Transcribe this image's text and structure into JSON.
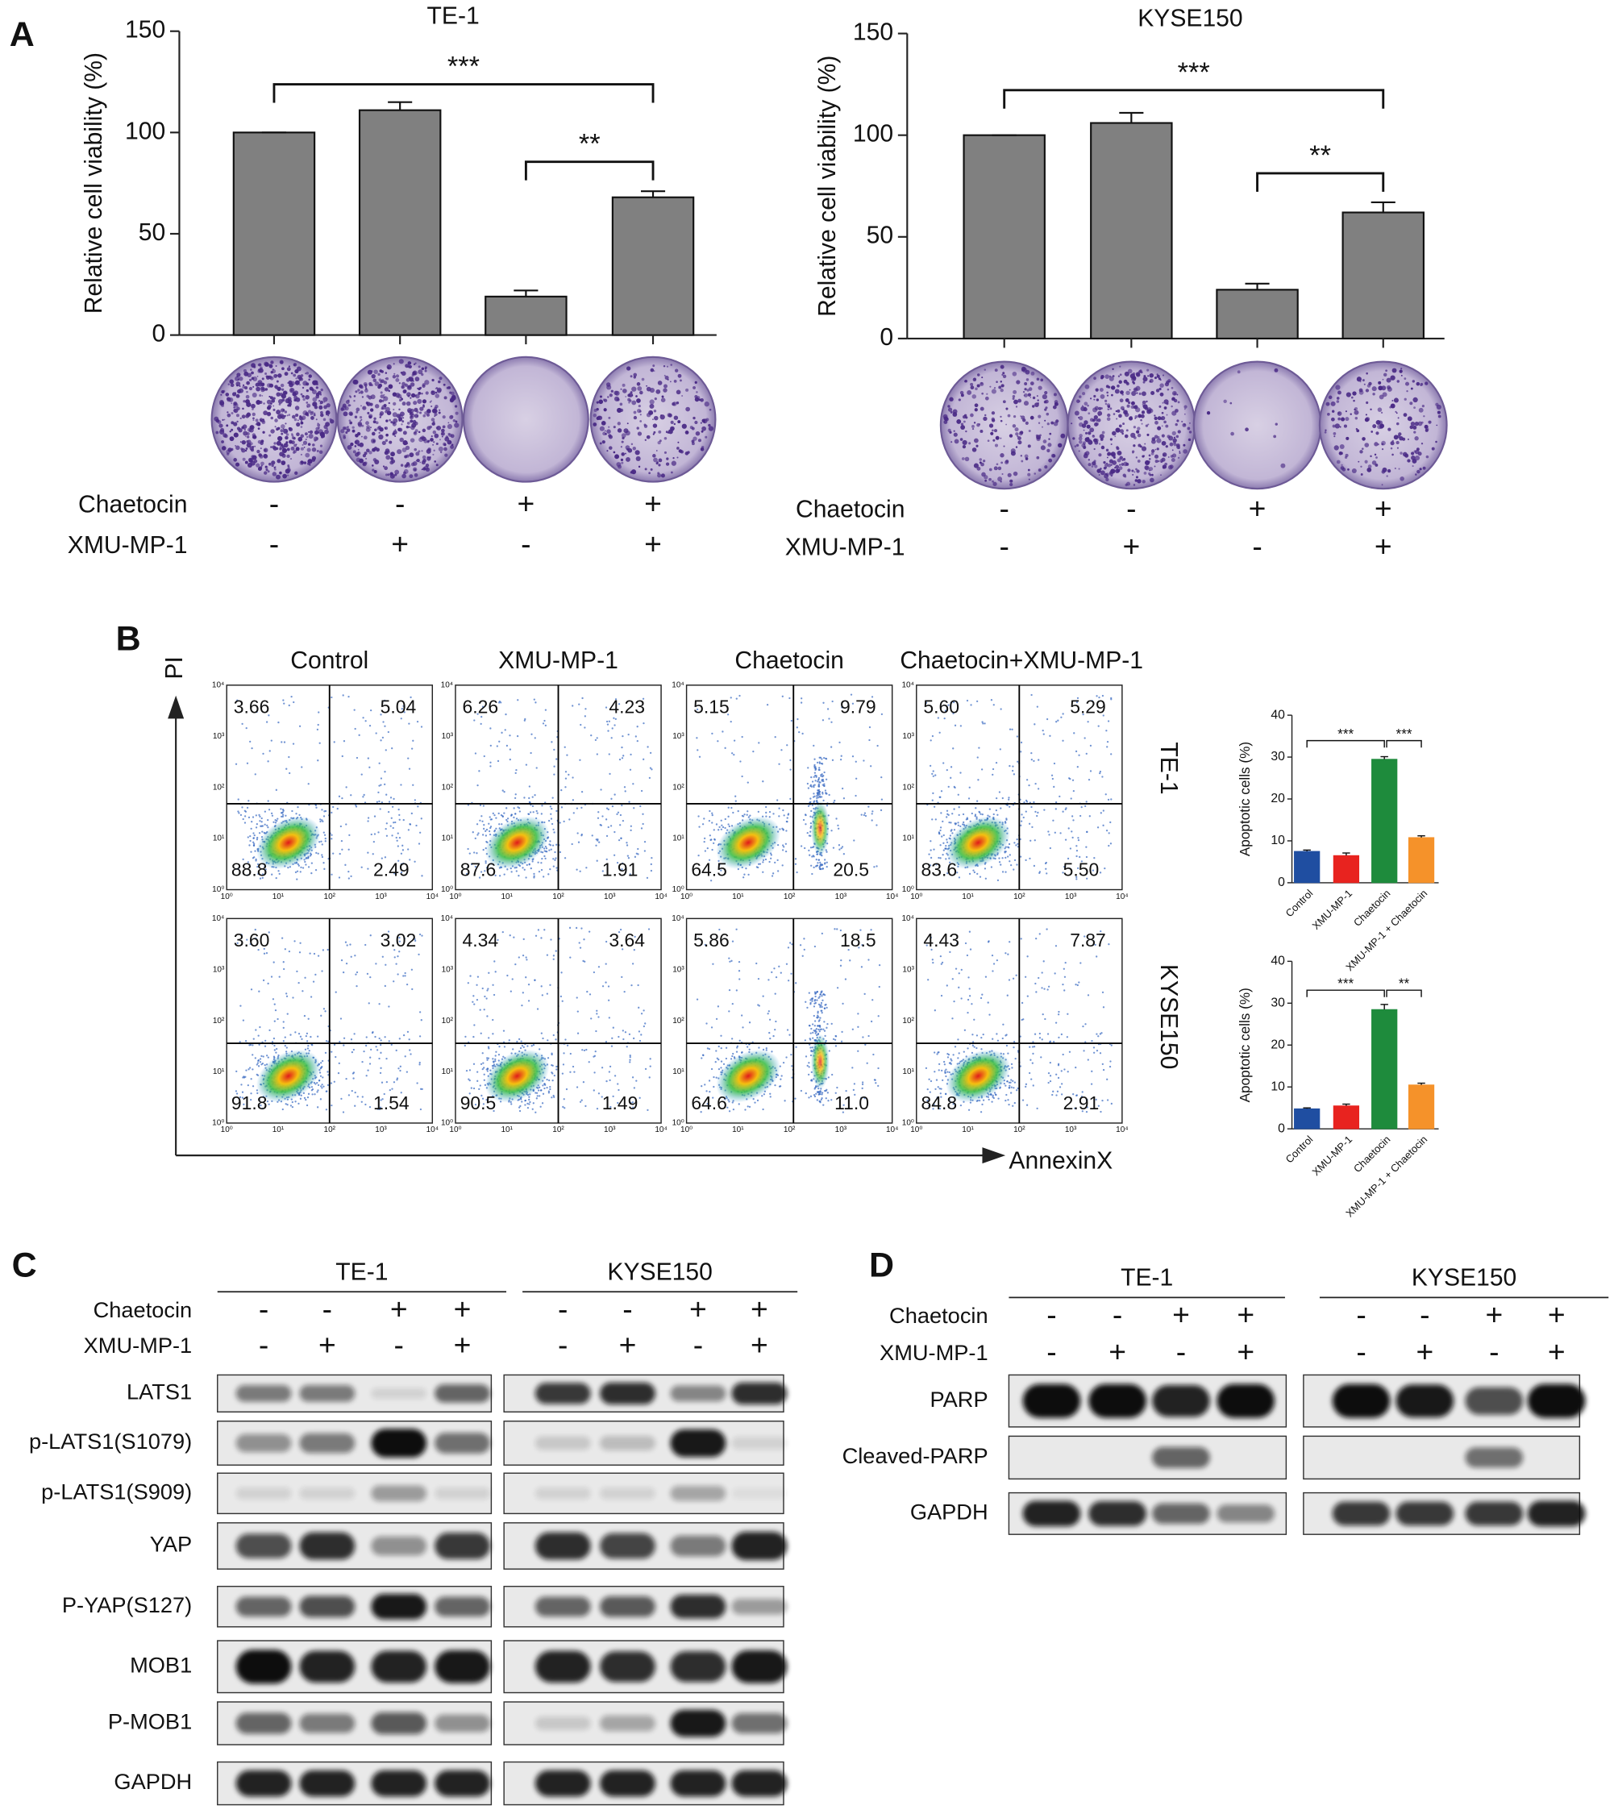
{
  "panel_labels": [
    "A",
    "B",
    "C",
    "D"
  ],
  "chart_data": [
    {
      "type": "bar",
      "title": "TE-1",
      "ylabel": "Relative cell  viability (%)",
      "categories": [
        null,
        null,
        null,
        null
      ],
      "values": [
        100,
        111,
        19,
        68
      ],
      "errors": [
        0,
        4,
        3,
        3
      ],
      "color": "#808080",
      "ylim": [
        0,
        150
      ],
      "yticks": [
        0,
        50,
        100,
        150
      ],
      "significance": [
        {
          "label": "***",
          "between": [
            0,
            3
          ]
        },
        {
          "label": "**",
          "between": [
            2,
            3
          ]
        }
      ],
      "conditions": [
        {
          "name": "Chaetocin",
          "signs": [
            "-",
            "-",
            "+",
            "+"
          ]
        },
        {
          "name": "XMU-MP-1",
          "signs": [
            "-",
            "+",
            "-",
            "+"
          ]
        }
      ]
    },
    {
      "type": "bar",
      "title": "KYSE150",
      "ylabel": "Relative cell viability (%)",
      "categories": [
        null,
        null,
        null,
        null
      ],
      "values": [
        100,
        106,
        24,
        62
      ],
      "errors": [
        0,
        5,
        3,
        5
      ],
      "color": "#808080",
      "ylim": [
        0,
        150
      ],
      "yticks": [
        0,
        50,
        100,
        150
      ],
      "significance": [
        {
          "label": "***",
          "between": [
            0,
            3
          ]
        },
        {
          "label": "**",
          "between": [
            2,
            3
          ]
        }
      ],
      "conditions": [
        {
          "name": "Chaetocin",
          "signs": [
            "-",
            "-",
            "+",
            "+"
          ]
        },
        {
          "name": "XMU-MP-1",
          "signs": [
            "-",
            "+",
            "-",
            "+"
          ]
        }
      ]
    },
    {
      "type": "bar",
      "ylabel": "Apoptotic cells (%)",
      "categories": [
        "Control",
        "XMU-MP-1",
        "Chaetocin",
        "XMU-MP-1 + Chaetocin"
      ],
      "values": [
        7.5,
        6.5,
        29.5,
        10.8
      ],
      "errors": [
        0.3,
        0.6,
        0.6,
        0.4
      ],
      "colors": [
        "#1f4ea1",
        "#e8231f",
        "#1e8b3c",
        "#f5922a"
      ],
      "ylim": [
        0,
        40
      ],
      "yticks": [
        0,
        10,
        20,
        30,
        40
      ],
      "significance": [
        {
          "label": "***",
          "between": [
            0,
            2
          ]
        },
        {
          "label": "***",
          "between": [
            2,
            3
          ]
        }
      ]
    },
    {
      "type": "bar",
      "ylabel": "Apoptotic cells (%)",
      "categories": [
        "Control",
        "XMU-MP-1",
        "Chaetocin",
        "XMU-MP-1 + Chaetocin"
      ],
      "values": [
        4.8,
        5.5,
        28.5,
        10.5
      ],
      "errors": [
        0.2,
        0.4,
        1.2,
        0.4
      ],
      "colors": [
        "#1f4ea1",
        "#e8231f",
        "#1e8b3c",
        "#f5922a"
      ],
      "ylim": [
        0,
        40
      ],
      "yticks": [
        0,
        10,
        20,
        30,
        40
      ],
      "significance": [
        {
          "label": "***",
          "between": [
            0,
            2
          ]
        },
        {
          "label": "**",
          "between": [
            2,
            3
          ]
        }
      ]
    }
  ],
  "flow_cytometry": {
    "columns": [
      "Control",
      "XMU-MP-1",
      "Chaetocin",
      "Chaetocin+XMU-MP-1"
    ],
    "rows": [
      "TE-1",
      "KYSE150"
    ],
    "y_axis": "PI",
    "x_axis": "AnnexinX",
    "tick_labels": [
      "10⁰",
      "10¹",
      "10²",
      "10³",
      "10⁴"
    ],
    "quadrants": [
      [
        [
          "3.66",
          "5.04",
          "88.8",
          "2.49"
        ],
        [
          "6.26",
          "4.23",
          "87.6",
          "1.91"
        ],
        [
          "5.15",
          "9.79",
          "64.5",
          "20.5"
        ],
        [
          "5.60",
          "5.29",
          "83.6",
          "5.50"
        ]
      ],
      [
        [
          "3.60",
          "3.02",
          "91.8",
          "1.54"
        ],
        [
          "4.34",
          "3.64",
          "90.5",
          "1.49"
        ],
        [
          "5.86",
          "18.5",
          "64.6",
          "11.0"
        ],
        [
          "4.43",
          "7.87",
          "84.8",
          "2.91"
        ]
      ]
    ]
  },
  "western_c": {
    "groups": [
      "TE-1",
      "KYSE150"
    ],
    "conditions": [
      {
        "name": "Chaetocin",
        "signs": [
          "-",
          "-",
          "+",
          "+"
        ]
      },
      {
        "name": "XMU-MP-1",
        "signs": [
          "-",
          "+",
          "-",
          "+"
        ]
      }
    ],
    "proteins": [
      "LATS1",
      "p-LATS1(S1079)",
      "p-LATS1(S909)",
      "YAP",
      "P-YAP(S127)",
      "MOB1",
      "P-MOB1",
      "GAPDH"
    ]
  },
  "western_d": {
    "groups": [
      "TE-1",
      "KYSE150"
    ],
    "conditions": [
      {
        "name": "Chaetocin",
        "signs": [
          "-",
          "-",
          "+",
          "+"
        ]
      },
      {
        "name": "XMU-MP-1",
        "signs": [
          "-",
          "+",
          "-",
          "+"
        ]
      }
    ],
    "proteins": [
      "PARP",
      "Cleaved-PARP",
      "GAPDH"
    ]
  }
}
